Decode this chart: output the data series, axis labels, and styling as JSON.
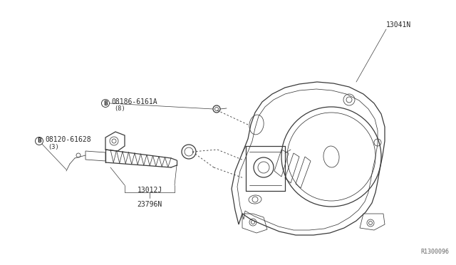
{
  "bg_color": "#ffffff",
  "line_color": "#3a3a3a",
  "text_color": "#2a2a2a",
  "labels": {
    "top_right": "13041N",
    "bolt_upper": "08186-6161A",
    "bolt_upper_sub": "(8)",
    "bolt_lower": "08120-61628",
    "bolt_lower_sub": "(3)",
    "part_center": "13012J",
    "part_bottom": "23796N",
    "ref_code": "R1300096"
  },
  "figsize": [
    6.4,
    3.72
  ],
  "dpi": 100,
  "lw_main": 0.9,
  "lw_thin": 0.55,
  "lw_label": 0.5
}
